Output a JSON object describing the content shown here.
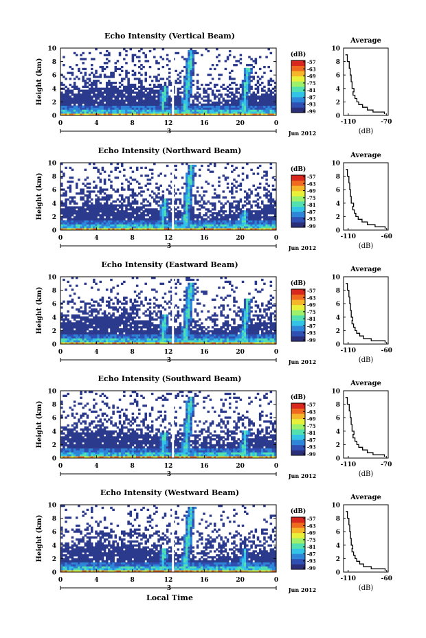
{
  "colors": {
    "background": "#ffffff",
    "low_echo": "#2b3a8c",
    "colormap": [
      "#2b2f7a",
      "#2f4fb3",
      "#2f86d8",
      "#33c3e6",
      "#52e0b0",
      "#9cf06a",
      "#e8f03a",
      "#f5b62a",
      "#ef6a1e",
      "#d8281e"
    ]
  },
  "chart_data": [
    {
      "type": "heatmap",
      "title": "Echo Intensity (Vertical Beam)",
      "ylabel": "Height (km)",
      "xlabel": "",
      "x_ticks": [
        "0",
        "4",
        "8",
        "12",
        "16",
        "20",
        "0"
      ],
      "y_ticks": [
        "0",
        "2",
        "4",
        "6",
        "8",
        "10"
      ],
      "xlim": [
        0,
        24
      ],
      "ylim": [
        0,
        10
      ],
      "date_label": "3",
      "month_label": "Jun 2012",
      "colorbar": {
        "unit": "(dB)",
        "ticks": [
          "-57",
          "-63",
          "-69",
          "-75",
          "-81",
          "-87",
          "-93",
          "-99"
        ],
        "range": [
          -99,
          -57
        ]
      },
      "plumes": [
        {
          "time": 11.3,
          "top_km": 4.3
        },
        {
          "time": 13.8,
          "top_km": 9.6
        },
        {
          "time": 20.3,
          "top_km": 7.1
        }
      ],
      "average_profile": {
        "title": "Average",
        "xlabel": "(dB)",
        "x_ticks": [
          "-110",
          "-70"
        ],
        "xlim": [
          -115,
          -68
        ],
        "y_ticks": [
          "0",
          "2",
          "4",
          "6",
          "8",
          "10"
        ],
        "height_km": [
          0.2,
          0.5,
          0.8,
          1.2,
          1.6,
          2,
          2.5,
          3,
          3.5,
          4,
          5,
          6,
          7,
          8,
          9
        ],
        "value_db": [
          -72,
          -84,
          -90,
          -95,
          -99,
          -101,
          -103,
          -105,
          -104,
          -106,
          -107,
          -108,
          -109,
          -111,
          -113
        ]
      }
    },
    {
      "type": "heatmap",
      "title": "Echo Intensity (Northward Beam)",
      "ylabel": "Height (km)",
      "xlabel": "",
      "x_ticks": [
        "0",
        "4",
        "8",
        "12",
        "16",
        "20",
        "0"
      ],
      "y_ticks": [
        "0",
        "2",
        "4",
        "6",
        "8",
        "10"
      ],
      "xlim": [
        0,
        24
      ],
      "ylim": [
        0,
        10
      ],
      "date_label": "3",
      "month_label": "Jun 2012",
      "colorbar": {
        "unit": "(dB)",
        "ticks": [
          "-57",
          "-63",
          "-69",
          "-75",
          "-81",
          "-87",
          "-93",
          "-99"
        ],
        "range": [
          -99,
          -57
        ]
      },
      "plumes": [
        {
          "time": 11.3,
          "top_km": 4.6
        },
        {
          "time": 13.8,
          "top_km": 9.6
        },
        {
          "time": 20.3,
          "top_km": 3.0
        }
      ],
      "average_profile": {
        "title": "Average",
        "xlabel": "(dB)",
        "x_ticks": [
          "-110",
          "-60"
        ],
        "xlim": [
          -116,
          -58
        ],
        "y_ticks": [
          "0",
          "2",
          "4",
          "6",
          "8",
          "10"
        ],
        "height_km": [
          0.2,
          0.5,
          0.8,
          1.2,
          1.6,
          2,
          2.5,
          3,
          3.5,
          4,
          5,
          6,
          7,
          8,
          9
        ],
        "value_db": [
          -62,
          -75,
          -85,
          -92,
          -97,
          -100,
          -102,
          -104,
          -103,
          -106,
          -107,
          -108,
          -109,
          -111,
          -113
        ]
      }
    },
    {
      "type": "heatmap",
      "title": "Echo Intensity (Eastward Beam)",
      "ylabel": "Height (km)",
      "xlabel": "",
      "x_ticks": [
        "0",
        "4",
        "8",
        "12",
        "16",
        "20",
        "0"
      ],
      "y_ticks": [
        "0",
        "2",
        "4",
        "6",
        "8",
        "10"
      ],
      "xlim": [
        0,
        24
      ],
      "ylim": [
        0,
        10
      ],
      "date_label": "3",
      "month_label": "Jun 2012",
      "colorbar": {
        "unit": "(dB)",
        "ticks": [
          "-57",
          "-63",
          "-69",
          "-75",
          "-81",
          "-87",
          "-93",
          "-99"
        ],
        "range": [
          -99,
          -57
        ]
      },
      "plumes": [
        {
          "time": 11.3,
          "top_km": 4.3
        },
        {
          "time": 13.8,
          "top_km": 9.2
        },
        {
          "time": 20.3,
          "top_km": 6.8
        }
      ],
      "average_profile": {
        "title": "Average",
        "xlabel": "(dB)",
        "x_ticks": [
          "-110",
          "-60"
        ],
        "xlim": [
          -116,
          -58
        ],
        "y_ticks": [
          "0",
          "2",
          "4",
          "6",
          "8",
          "10"
        ],
        "height_km": [
          0.2,
          0.5,
          0.8,
          1.2,
          1.6,
          2,
          2.5,
          3,
          3.5,
          4,
          5,
          6,
          7,
          8,
          9
        ],
        "value_db": [
          -62,
          -80,
          -90,
          -95,
          -99,
          -101,
          -103,
          -105,
          -104,
          -106,
          -107,
          -108,
          -109,
          -111,
          -113
        ]
      }
    },
    {
      "type": "heatmap",
      "title": "Echo Intensity (Southward Beam)",
      "ylabel": "Height (km)",
      "xlabel": "",
      "x_ticks": [
        "0",
        "4",
        "8",
        "12",
        "16",
        "20",
        "0"
      ],
      "y_ticks": [
        "0",
        "2",
        "4",
        "6",
        "8",
        "10"
      ],
      "xlim": [
        0,
        24
      ],
      "ylim": [
        0,
        10
      ],
      "date_label": "3",
      "month_label": "Jun 2012",
      "colorbar": {
        "unit": "(dB)",
        "ticks": [
          "-57",
          "-63",
          "-69",
          "-75",
          "-81",
          "-87",
          "-93",
          "-99"
        ],
        "range": [
          -99,
          -57
        ]
      },
      "plumes": [
        {
          "time": 11.3,
          "top_km": 3.8
        },
        {
          "time": 13.8,
          "top_km": 9.2
        },
        {
          "time": 20.3,
          "top_km": 4.2
        }
      ],
      "average_profile": {
        "title": "Average",
        "xlabel": "(dB)",
        "x_ticks": [
          "-110",
          "-70"
        ],
        "xlim": [
          -115,
          -68
        ],
        "y_ticks": [
          "0",
          "2",
          "4",
          "6",
          "8",
          "10"
        ],
        "height_km": [
          0.2,
          0.5,
          0.8,
          1.2,
          1.6,
          2,
          2.5,
          3,
          3.5,
          4,
          5,
          6,
          7,
          8,
          9
        ],
        "value_db": [
          -72,
          -84,
          -90,
          -95,
          -99,
          -101,
          -103,
          -105,
          -104,
          -106,
          -107,
          -108,
          -109,
          -111,
          -113
        ]
      }
    },
    {
      "type": "heatmap",
      "title": "Echo Intensity (Westward Beam)",
      "ylabel": "Height (km)",
      "xlabel": "Local Time",
      "x_ticks": [
        "0",
        "4",
        "8",
        "12",
        "16",
        "20",
        "0"
      ],
      "y_ticks": [
        "0",
        "2",
        "4",
        "6",
        "8",
        "10"
      ],
      "xlim": [
        0,
        24
      ],
      "ylim": [
        0,
        10
      ],
      "date_label": "3",
      "month_label": "Jun 2012",
      "colorbar": {
        "unit": "(dB)",
        "ticks": [
          "-57",
          "-63",
          "-69",
          "-75",
          "-81",
          "-87",
          "-93",
          "-99"
        ],
        "range": [
          -99,
          -57
        ]
      },
      "plumes": [
        {
          "time": 11.3,
          "top_km": 3.5
        },
        {
          "time": 13.8,
          "top_km": 9.6
        },
        {
          "time": 20.3,
          "top_km": 3.5
        }
      ],
      "average_profile": {
        "title": "Average",
        "xlabel": "(dB)",
        "x_ticks": [
          "-110",
          "-60"
        ],
        "xlim": [
          -116,
          -58
        ],
        "y_ticks": [
          "0",
          "2",
          "4",
          "6",
          "8",
          "10"
        ],
        "height_km": [
          0.2,
          0.5,
          0.8,
          1.2,
          1.6,
          2,
          2.5,
          3,
          3.5,
          4,
          5,
          6,
          7,
          8,
          9
        ],
        "value_db": [
          -62,
          -80,
          -90,
          -95,
          -99,
          -101,
          -103,
          -105,
          -104,
          -106,
          -107,
          -108,
          -109,
          -111,
          -113
        ]
      }
    }
  ]
}
